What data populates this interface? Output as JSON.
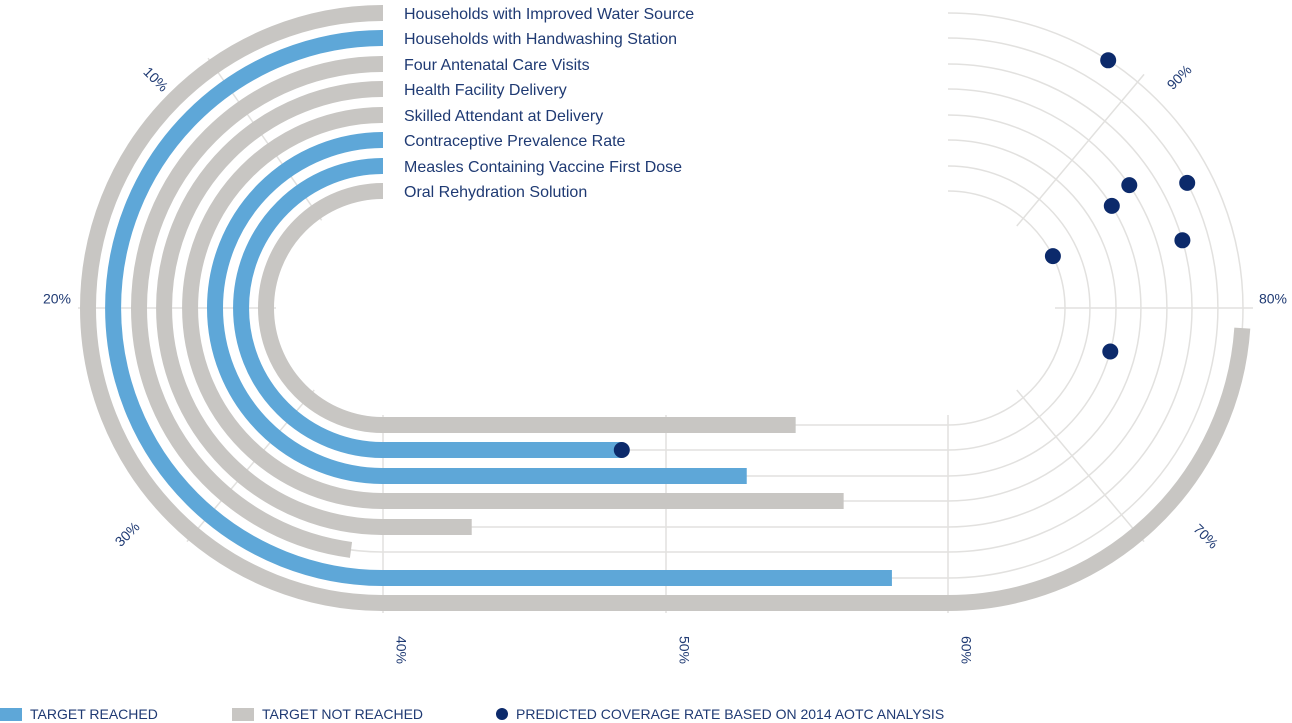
{
  "chart_data": {
    "type": "radial-track",
    "title": "",
    "categories": [
      "Households with Improved Water Source",
      "Households with Handwashing Station",
      "Four Antenatal Care Visits",
      "Health Facility Delivery",
      "Skilled Attendant at Delivery",
      "Contraceptive Prevalence Rate",
      "Measles Containing Vaccine First Dose",
      "Oral Rehydration Solution"
    ],
    "values": [
      80,
      60,
      35,
      40,
      60,
      55,
      47,
      60
    ],
    "status": [
      "not_reached",
      "reached",
      "not_reached",
      "not_reached",
      "not_reached",
      "reached",
      "reached",
      "not_reached"
    ],
    "predicted": [
      93,
      87,
      85,
      89,
      89,
      81,
      47,
      90
    ],
    "axis_ticks": [
      "10%",
      "20%",
      "30%",
      "40%",
      "50%",
      "60%",
      "70%",
      "80%",
      "90%"
    ],
    "scale": [
      0,
      100
    ],
    "legend": {
      "reached": "TARGET REACHED",
      "not_reached": "TARGET NOT REACHED",
      "predicted": "PREDICTED COVERAGE RATE BASED ON 2014 AOTC ANALYSIS"
    },
    "colors": {
      "reached": "#5ea7d8",
      "not_reached": "#c8c6c3",
      "predicted": "#0c2a6b",
      "track": "#e2e1df",
      "text": "#1f3a73"
    }
  }
}
